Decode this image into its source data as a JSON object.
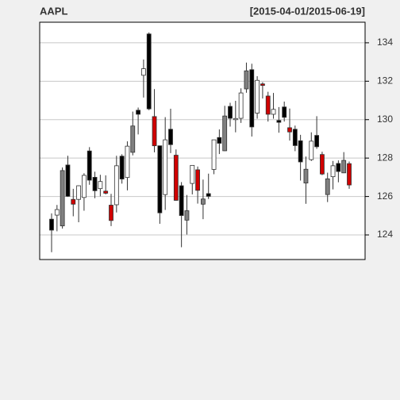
{
  "chart_data": {
    "type": "candlestick",
    "title": "AAPL",
    "subtitle": "[2015-04-01/2015-06-19]",
    "open": [
      124.82,
      125.03,
      124.47,
      127.64,
      125.85,
      125.85,
      125.95,
      128.37,
      127.0,
      126.41,
      126.28,
      125.55,
      125.57,
      128.1,
      126.99,
      128.3,
      130.49,
      132.31,
      134.46,
      130.16,
      128.64,
      126.1,
      129.5,
      128.15,
      126.56,
      124.77,
      126.68,
      127.39,
      125.6,
      126.15,
      127.41,
      129.07,
      128.38,
      130.69,
      130.0,
      130.07,
      131.6,
      132.6,
      130.34,
      131.86,
      131.23,
      130.28,
      129.86,
      130.66,
      129.58,
      129.5,
      128.9,
      126.7,
      127.92,
      129.18,
      128.185,
      126.1,
      127.03,
      127.72,
      127.23,
      127.71
    ],
    "high": [
      125.12,
      125.56,
      127.51,
      128.12,
      126.4,
      126.58,
      127.21,
      128.57,
      127.29,
      127.13,
      127.1,
      126.14,
      128.12,
      128.2,
      128.87,
      130.42,
      130.63,
      133.13,
      134.54,
      131.59,
      128.64,
      130.13,
      130.57,
      128.45,
      126.75,
      126.08,
      127.62,
      127.56,
      126.88,
      127.19,
      128.95,
      129.49,
      130.72,
      130.88,
      130.98,
      131.63,
      132.97,
      132.91,
      132.26,
      131.95,
      131.45,
      131.39,
      130.655,
      130.94,
      130.58,
      129.69,
      129.21,
      128.08,
      129.34,
      130.18,
      128.33,
      127.24,
      127.85,
      127.88,
      128.31,
      127.82
    ],
    "low": [
      123.1,
      124.19,
      124.33,
      125.98,
      124.97,
      124.66,
      125.26,
      126.61,
      125.91,
      126.01,
      126.11,
      124.46,
      125.17,
      126.67,
      126.32,
      128.14,
      129.23,
      131.15,
      130.49,
      128.3,
      124.58,
      125.3,
      128.26,
      125.78,
      123.36,
      124.02,
      126.11,
      125.63,
      124.82,
      125.87,
      127.16,
      128.21,
      128.36,
      129.64,
      129.34,
      129.83,
      131.4,
      129.12,
      130.05,
      131.1,
      129.9,
      130.05,
      129.32,
      129.9,
      128.91,
      128.36,
      126.83,
      125.62,
      127.85,
      128.48,
      127.11,
      125.71,
      126.37,
      126.74,
      127.22,
      126.4
    ],
    "close": [
      124.25,
      125.32,
      127.35,
      126.01,
      125.6,
      126.56,
      127.1,
      126.85,
      126.3,
      126.78,
      126.17,
      124.75,
      127.6,
      126.91,
      128.62,
      129.67,
      130.28,
      132.65,
      130.56,
      128.64,
      125.15,
      128.95,
      128.7,
      125.8,
      125.01,
      125.26,
      127.62,
      126.32,
      125.87,
      126.01,
      128.95,
      128.77,
      130.19,
      130.07,
      130.06,
      131.39,
      132.54,
      129.62,
      132.045,
      131.78,
      130.28,
      130.535,
      129.96,
      130.12,
      129.36,
      128.65,
      127.8,
      127.42,
      128.88,
      128.59,
      127.17,
      126.92,
      127.6,
      127.3,
      127.88,
      126.6
    ],
    "colors": [
      "#000000",
      "#ffffff",
      "#808080",
      "#000000",
      "#d00000",
      "#ffffff",
      "#ffffff",
      "#000000",
      "#000000",
      "#ffffff",
      "#d00000",
      "#d00000",
      "#ffffff",
      "#000000",
      "#ffffff",
      "#808080",
      "#000000",
      "#ffffff",
      "#000000",
      "#d00000",
      "#000000",
      "#ffffff",
      "#000000",
      "#d00000",
      "#000000",
      "#808080",
      "#ffffff",
      "#d00000",
      "#808080",
      "#000000",
      "#ffffff",
      "#000000",
      "#808080",
      "#000000",
      "#ffffff",
      "#ffffff",
      "#808080",
      "#000000",
      "#ffffff",
      "#d00000",
      "#d00000",
      "#ffffff",
      "#000000",
      "#000000",
      "#d00000",
      "#000000",
      "#000000",
      "#808080",
      "#ffffff",
      "#000000",
      "#d00000",
      "#808080",
      "#ffffff",
      "#000000",
      "#808080",
      "#d00000"
    ],
    "ylim": [
      122.72,
      135.07
    ],
    "yticks": [
      124,
      126,
      128,
      130,
      132,
      134
    ],
    "grid": true
  }
}
